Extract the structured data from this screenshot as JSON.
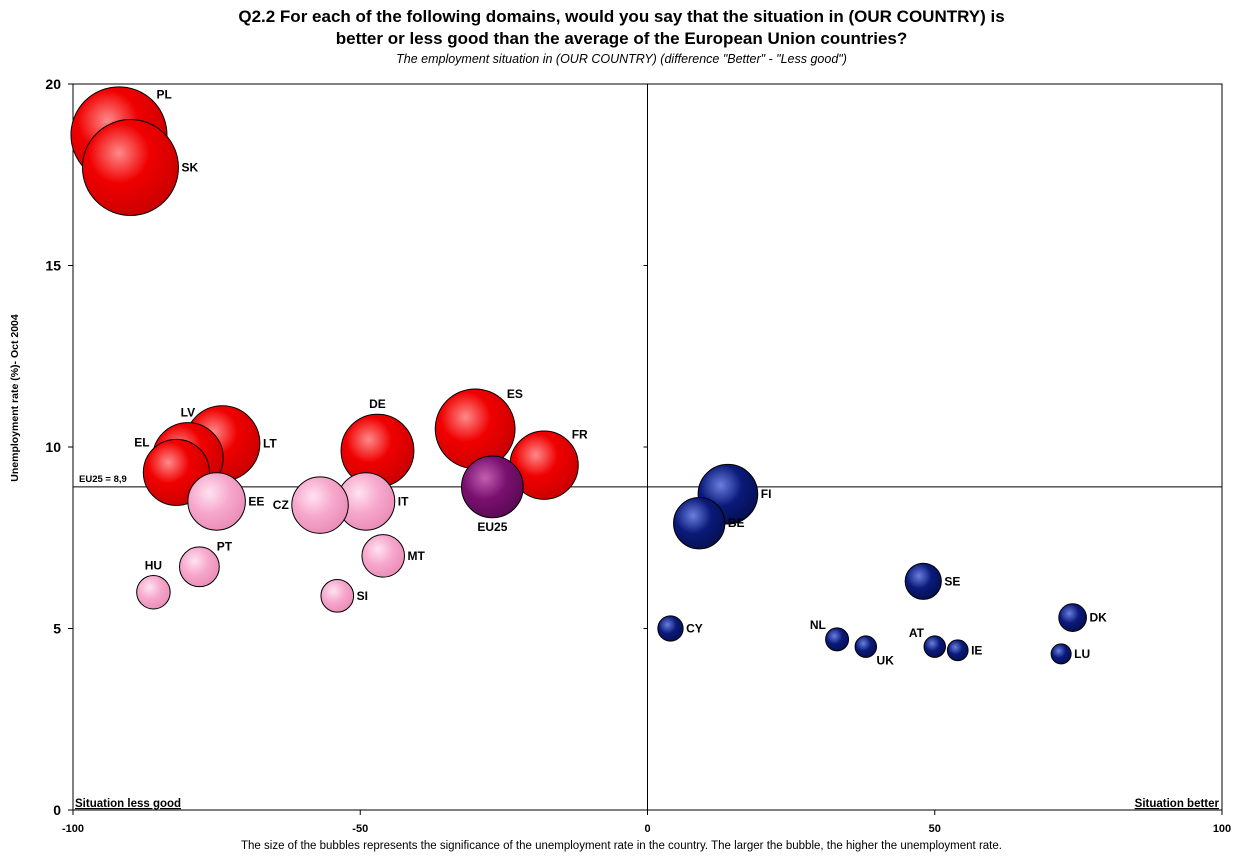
{
  "chart_data": {
    "type": "scatter",
    "title": "Q2.2 For each of the following domains, would you say that the situation in (OUR COUNTRY) is",
    "title_line2": "better or less good than the average of the European Union countries?",
    "subtitle": "The employment situation in (OUR COUNTRY) (difference \"Better\" - \"Less good\")",
    "xlabel": "",
    "ylabel": "Unemployment rate (%)- Oct 2004",
    "footnote": "The size of the bubbles represents the significance of the unemployment rate in the country. The larger the bubble, the higher the unemployment rate.",
    "xlim": [
      -100,
      100
    ],
    "ylim": [
      0,
      20
    ],
    "x_ticks": [
      "-100",
      "-50",
      "0",
      "50",
      "100"
    ],
    "y_ticks": [
      "0",
      "5",
      "10",
      "15",
      "20"
    ],
    "x_tick_values": [
      -100,
      -50,
      0,
      50,
      100
    ],
    "y_tick_values": [
      0,
      5,
      10,
      15,
      20
    ],
    "reference_line": {
      "label": "EU25 = 8,9",
      "y": 8.9
    },
    "corner_labels": {
      "left": "Situation less good",
      "right": "Situation better"
    },
    "colors": {
      "red": "#ee0000",
      "pink": "#f7a8cc",
      "purple": "#7a1070",
      "blue": "#0a1a7a"
    },
    "points": [
      {
        "label": "PL",
        "x": -92,
        "y": 18.6,
        "color": "red",
        "label_pos": "ne"
      },
      {
        "label": "SK",
        "x": -90,
        "y": 17.7,
        "color": "red",
        "label_pos": "e"
      },
      {
        "label": "LV",
        "x": -80,
        "y": 9.7,
        "color": "red",
        "label_pos": "n"
      },
      {
        "label": "EL",
        "x": -82,
        "y": 9.3,
        "color": "red",
        "label_pos": "nw"
      },
      {
        "label": "LT",
        "x": -74,
        "y": 10.1,
        "color": "red",
        "label_pos": "e"
      },
      {
        "label": "DE",
        "x": -47,
        "y": 9.9,
        "color": "red",
        "label_pos": "n"
      },
      {
        "label": "ES",
        "x": -30,
        "y": 10.5,
        "color": "red",
        "label_pos": "ne"
      },
      {
        "label": "FR",
        "x": -18,
        "y": 9.5,
        "color": "red",
        "label_pos": "ne"
      },
      {
        "label": "EE",
        "x": -75,
        "y": 8.5,
        "color": "pink",
        "label_pos": "e"
      },
      {
        "label": "CZ",
        "x": -57,
        "y": 8.4,
        "color": "pink",
        "label_pos": "w"
      },
      {
        "label": "IT",
        "x": -49,
        "y": 8.5,
        "color": "pink",
        "label_pos": "e"
      },
      {
        "label": "MT",
        "x": -46,
        "y": 7.0,
        "color": "pink",
        "label_pos": "e"
      },
      {
        "label": "PT",
        "x": -78,
        "y": 6.7,
        "color": "pink",
        "label_pos": "ne"
      },
      {
        "label": "HU",
        "x": -86,
        "y": 6.0,
        "color": "pink",
        "label_pos": "n"
      },
      {
        "label": "SI",
        "x": -54,
        "y": 5.9,
        "color": "pink",
        "label_pos": "e"
      },
      {
        "label": "EU25",
        "x": -27,
        "y": 8.9,
        "color": "purple",
        "label_pos": "s"
      },
      {
        "label": "FI",
        "x": 14,
        "y": 8.7,
        "color": "blue",
        "label_pos": "e"
      },
      {
        "label": "BE",
        "x": 9,
        "y": 7.9,
        "color": "blue",
        "label_pos": "e"
      },
      {
        "label": "SE",
        "x": 48,
        "y": 6.3,
        "color": "blue",
        "label_pos": "e"
      },
      {
        "label": "DK",
        "x": 74,
        "y": 5.3,
        "color": "blue",
        "label_pos": "e"
      },
      {
        "label": "CY",
        "x": 4,
        "y": 5.0,
        "color": "blue",
        "label_pos": "e"
      },
      {
        "label": "NL",
        "x": 33,
        "y": 4.7,
        "color": "blue",
        "label_pos": "nw"
      },
      {
        "label": "UK",
        "x": 38,
        "y": 4.5,
        "color": "blue",
        "label_pos": "se"
      },
      {
        "label": "AT",
        "x": 50,
        "y": 4.5,
        "color": "blue",
        "label_pos": "nw"
      },
      {
        "label": "IE",
        "x": 54,
        "y": 4.4,
        "color": "blue",
        "label_pos": "e"
      },
      {
        "label": "LU",
        "x": 72,
        "y": 4.3,
        "color": "blue",
        "label_pos": "e"
      }
    ]
  }
}
